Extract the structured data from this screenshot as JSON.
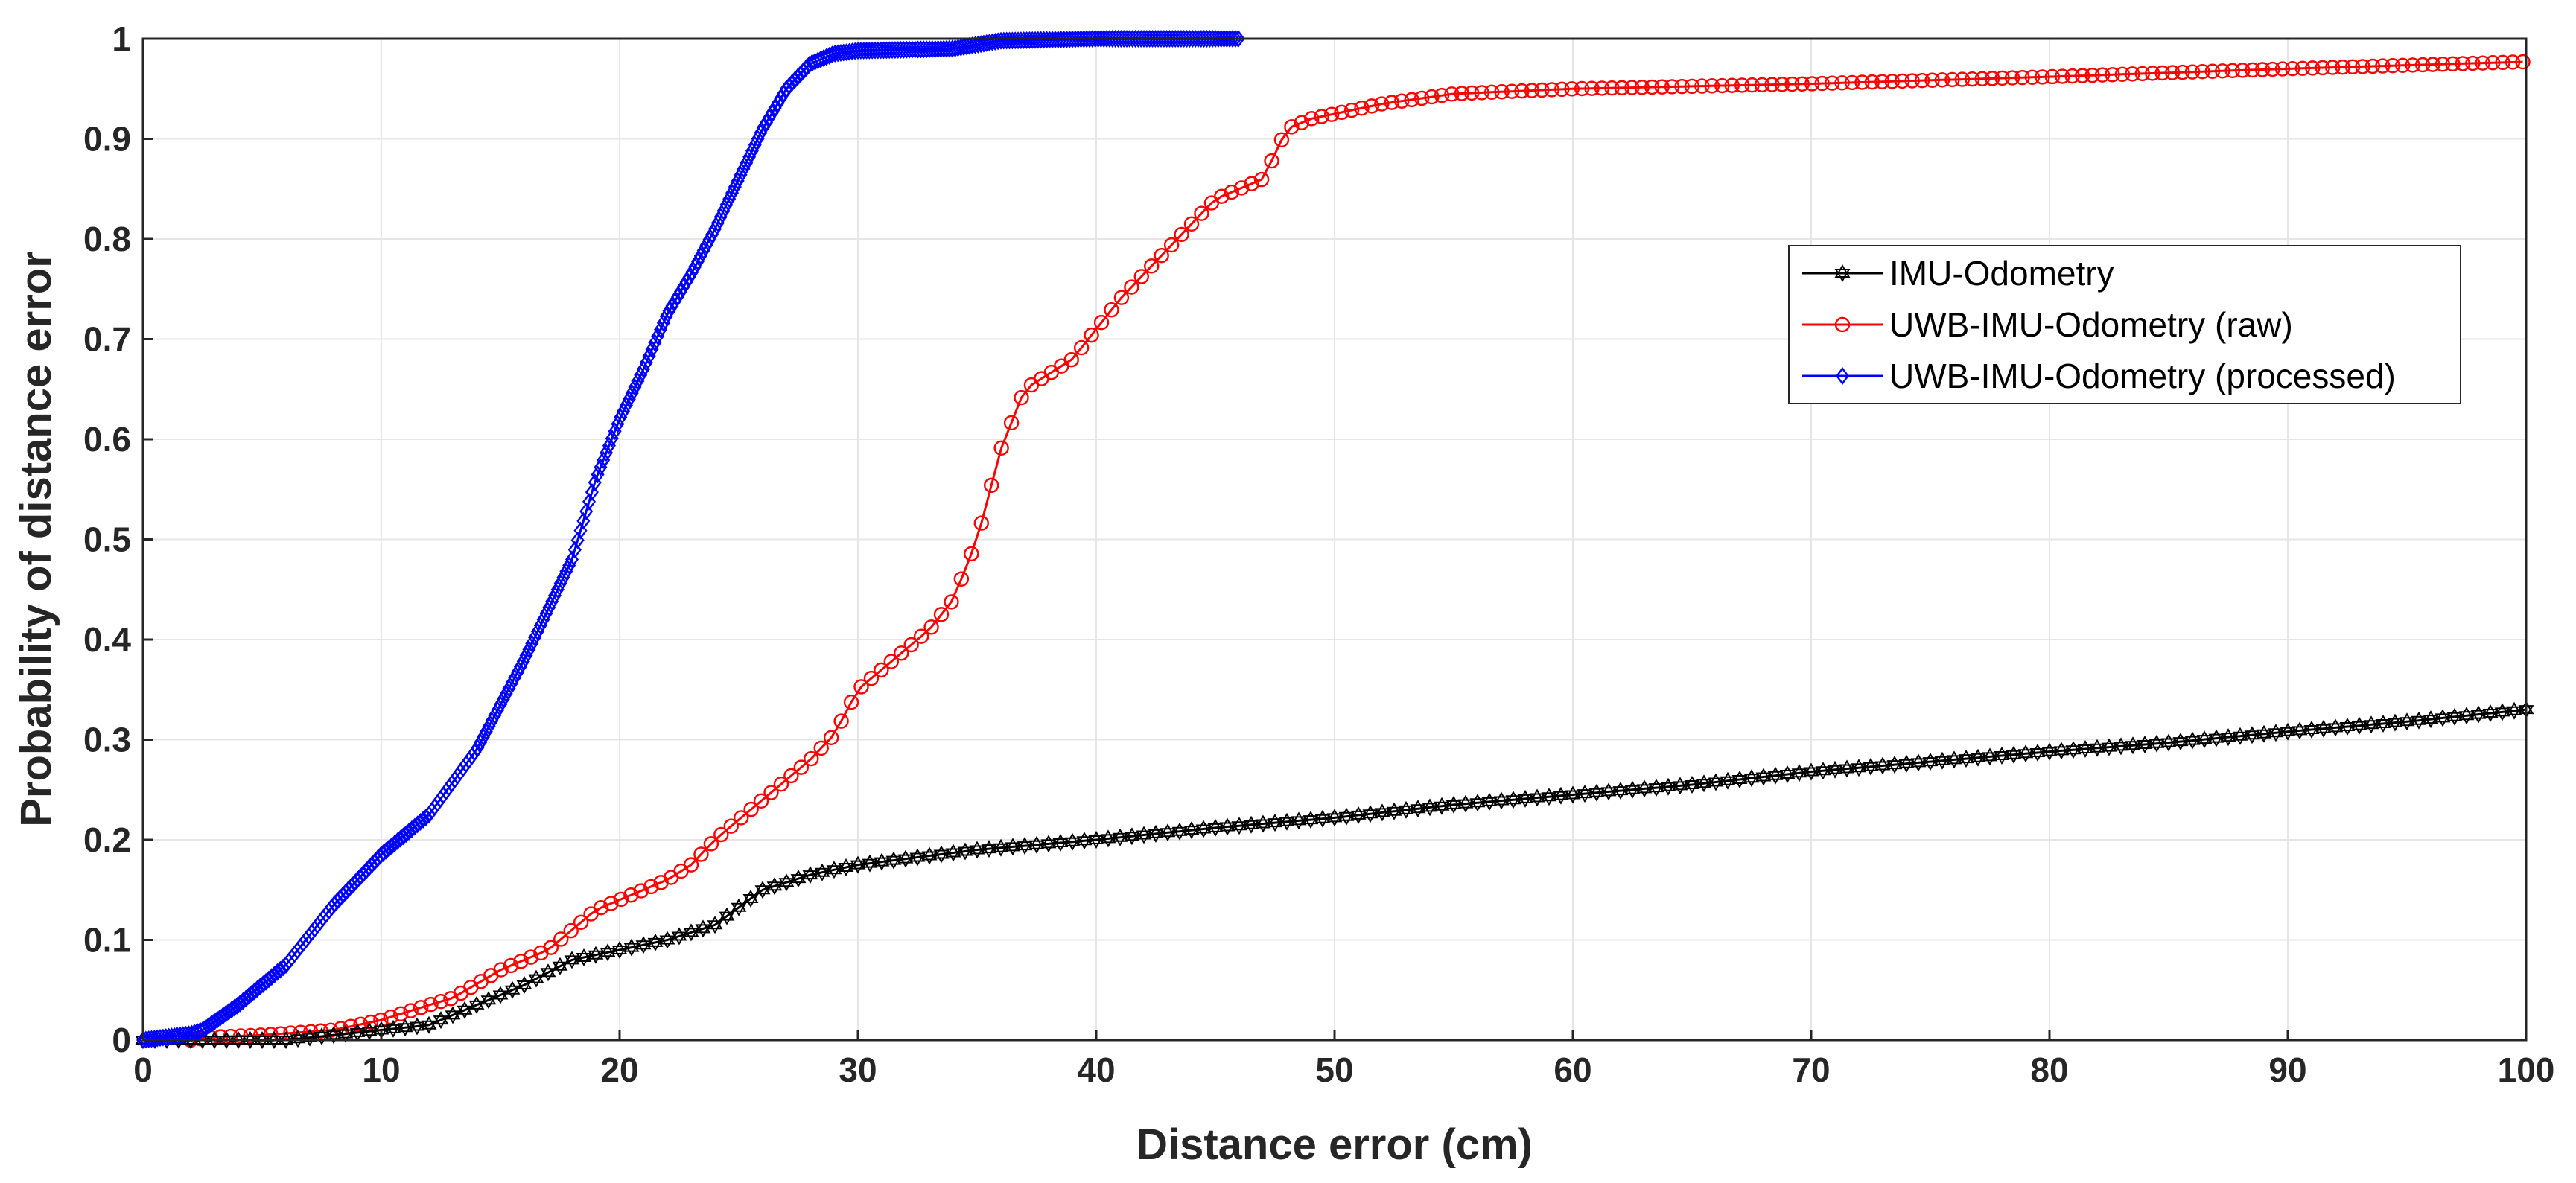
{
  "chart_data": {
    "type": "line",
    "xlabel": "Distance error (cm)",
    "ylabel": "Probability of distance error",
    "xlim": [
      0,
      100
    ],
    "ylim": [
      0,
      1
    ],
    "xticks": [
      0,
      10,
      20,
      30,
      40,
      50,
      60,
      70,
      80,
      90,
      100
    ],
    "yticks": [
      0,
      0.1,
      0.2,
      0.3,
      0.4,
      0.5,
      0.6,
      0.7,
      0.8,
      0.9,
      1
    ],
    "xtick_labels": [
      "0",
      "10",
      "20",
      "30",
      "40",
      "50",
      "60",
      "70",
      "80",
      "90",
      "100"
    ],
    "ytick_labels": [
      "0",
      "0.1",
      "0.2",
      "0.3",
      "0.4",
      "0.5",
      "0.6",
      "0.7",
      "0.8",
      "0.9",
      "1"
    ],
    "grid": true,
    "legend_position": "right, upper-middle",
    "series": [
      {
        "name": "IMU-Odometry",
        "color": "#000000",
        "marker": "hexagram",
        "step": 0.5,
        "points": [
          [
            0,
            0
          ],
          [
            6,
            0
          ],
          [
            8,
            0.005
          ],
          [
            10,
            0.01
          ],
          [
            12,
            0.015
          ],
          [
            14,
            0.035
          ],
          [
            16,
            0.055
          ],
          [
            18,
            0.08
          ],
          [
            20,
            0.09
          ],
          [
            22,
            0.1
          ],
          [
            24,
            0.115
          ],
          [
            26,
            0.15
          ],
          [
            28,
            0.165
          ],
          [
            30,
            0.175
          ],
          [
            35,
            0.19
          ],
          [
            40,
            0.2
          ],
          [
            45,
            0.212
          ],
          [
            50,
            0.222
          ],
          [
            55,
            0.235
          ],
          [
            60,
            0.245
          ],
          [
            65,
            0.255
          ],
          [
            70,
            0.268
          ],
          [
            75,
            0.278
          ],
          [
            80,
            0.288
          ],
          [
            85,
            0.297
          ],
          [
            90,
            0.308
          ],
          [
            95,
            0.318
          ],
          [
            100,
            0.33
          ]
        ]
      },
      {
        "name": "UWB-IMU-Odometry (raw)",
        "color": "#ff0000",
        "marker": "circle",
        "step": 0.42,
        "points": [
          [
            2,
            0
          ],
          [
            3,
            0.003
          ],
          [
            5,
            0.005
          ],
          [
            8,
            0.01
          ],
          [
            10,
            0.02
          ],
          [
            12,
            0.035
          ],
          [
            13,
            0.042
          ],
          [
            15,
            0.07
          ],
          [
            17,
            0.09
          ],
          [
            18,
            0.11
          ],
          [
            19,
            0.13
          ],
          [
            20,
            0.14
          ],
          [
            22,
            0.16
          ],
          [
            23,
            0.175
          ],
          [
            24,
            0.2
          ],
          [
            26,
            0.24
          ],
          [
            28,
            0.28
          ],
          [
            29,
            0.305
          ],
          [
            30,
            0.35
          ],
          [
            31,
            0.37
          ],
          [
            32,
            0.39
          ],
          [
            33,
            0.41
          ],
          [
            34,
            0.44
          ],
          [
            35,
            0.5
          ],
          [
            36,
            0.59
          ],
          [
            37,
            0.65
          ],
          [
            38,
            0.665
          ],
          [
            39,
            0.68
          ],
          [
            40,
            0.71
          ],
          [
            41,
            0.74
          ],
          [
            42,
            0.765
          ],
          [
            43,
            0.79
          ],
          [
            44,
            0.815
          ],
          [
            45,
            0.84
          ],
          [
            46,
            0.85
          ],
          [
            47,
            0.86
          ],
          [
            48,
            0.91
          ],
          [
            49,
            0.92
          ],
          [
            50,
            0.925
          ],
          [
            52,
            0.935
          ],
          [
            55,
            0.945
          ],
          [
            60,
            0.95
          ],
          [
            70,
            0.955
          ],
          [
            80,
            0.962
          ],
          [
            90,
            0.97
          ],
          [
            100,
            0.977
          ]
        ]
      },
      {
        "name": "UWB-IMU-Odometry (processed)",
        "color": "#0000ff",
        "marker": "diamond",
        "step": 0.12,
        "points": [
          [
            0,
            0
          ],
          [
            1,
            0.003
          ],
          [
            2,
            0.006
          ],
          [
            2.5,
            0.01
          ],
          [
            4,
            0.035
          ],
          [
            6,
            0.075
          ],
          [
            8,
            0.135
          ],
          [
            10,
            0.185
          ],
          [
            12,
            0.225
          ],
          [
            14,
            0.29
          ],
          [
            16,
            0.38
          ],
          [
            18,
            0.48
          ],
          [
            19,
            0.56
          ],
          [
            20,
            0.62
          ],
          [
            21,
            0.67
          ],
          [
            22,
            0.725
          ],
          [
            23,
            0.765
          ],
          [
            24,
            0.81
          ],
          [
            25,
            0.86
          ],
          [
            26,
            0.91
          ],
          [
            27,
            0.95
          ],
          [
            28,
            0.975
          ],
          [
            29,
            0.985
          ],
          [
            30,
            0.988
          ],
          [
            34,
            0.99
          ],
          [
            36,
            0.998
          ],
          [
            40,
            1.0
          ],
          [
            46,
            1.0
          ]
        ]
      }
    ]
  }
}
